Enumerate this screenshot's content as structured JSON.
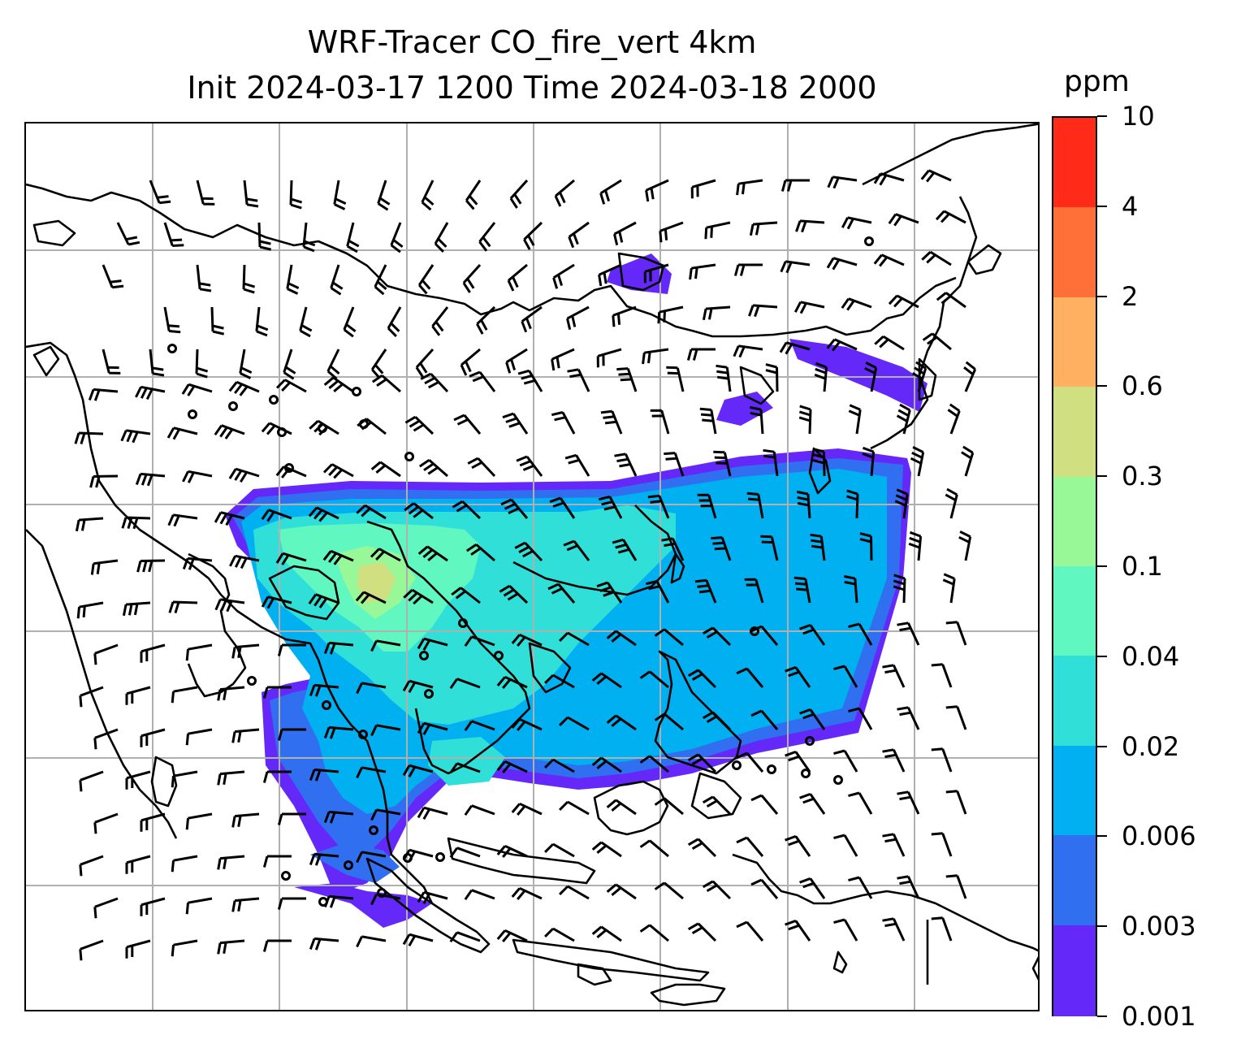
{
  "title": {
    "line1": "WRF-Tracer CO_fire_vert 4km",
    "line2": "Init 2024-03-17 1200 Time 2024-03-18 2000"
  },
  "colorbar": {
    "unit": "ppm",
    "labels": [
      "10",
      "4",
      "2",
      "0.6",
      "0.3",
      "0.1",
      "0.04",
      "0.02",
      "0.006",
      "0.003",
      "0.001"
    ],
    "colors": [
      "#ff2a18",
      "#ff7038",
      "#ffb060",
      "#d0e080",
      "#98f898",
      "#60f8c0",
      "#30e0d8",
      "#00b0f0",
      "#3070f0",
      "#6428f8"
    ]
  },
  "map": {
    "gridlines": true,
    "palette": {
      "very_low": "#6428f8",
      "low": "#3070f0",
      "mid_low": "#00b0f0",
      "mid": "#30e0d8",
      "mid_high": "#60f8c0",
      "high": "#98f898",
      "higher": "#d0e080",
      "coast": "#000000",
      "grid": "#b0b0b0"
    }
  }
}
